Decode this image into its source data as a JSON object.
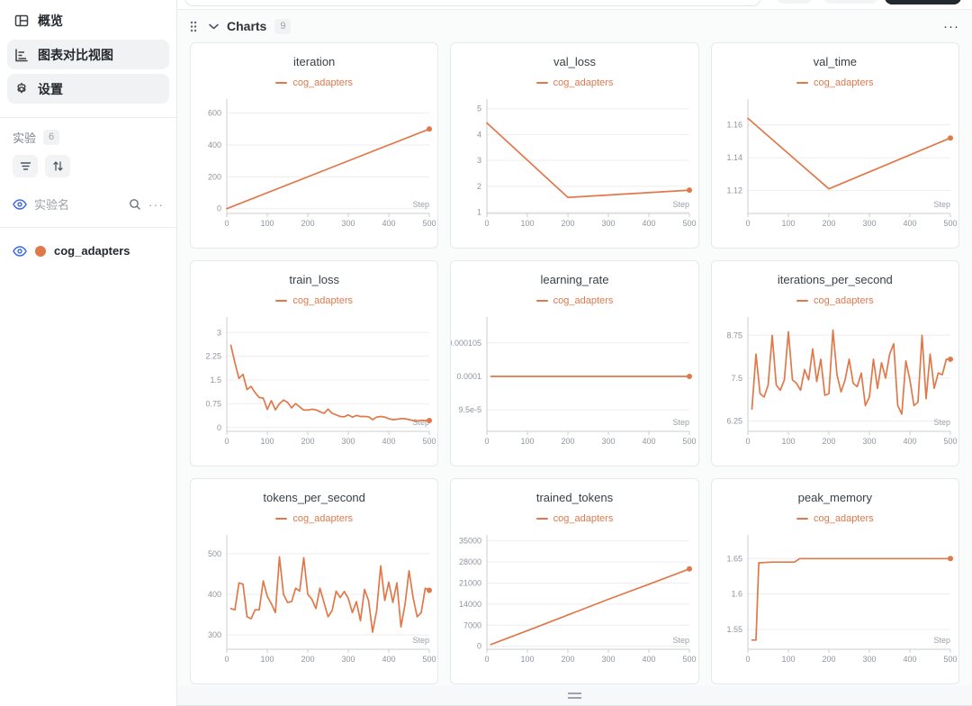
{
  "colors": {
    "accent": "#e0784a",
    "eye_blue": "#3567e8",
    "grid_line": "#eeeeee",
    "axis_line": "#cccccc",
    "tick_text": "#8f959e",
    "step_text": "#9aa0a6"
  },
  "sidebar": {
    "nav": [
      {
        "label": "概览",
        "icon": "overview-grid-icon",
        "active": false
      },
      {
        "label": "图表对比视图",
        "icon": "chart-compare-icon",
        "active": true
      },
      {
        "label": "设置",
        "icon": "settings-gear-icon",
        "active": true
      }
    ],
    "experiments_label": "实验",
    "experiments_count": "6",
    "column_header": "实验名",
    "more_label": "···",
    "experiments": [
      {
        "name": "cog_adapters",
        "color": "#e0784a",
        "visible": true
      }
    ]
  },
  "panel": {
    "title": "Charts",
    "count": "9",
    "more_label": "···"
  },
  "chart_data": [
    {
      "type": "line",
      "title": "iteration",
      "legend": "cog_adapters",
      "xlabel": "Step",
      "x_ticks": [
        0,
        100,
        200,
        300,
        400,
        500
      ],
      "xmax": 500,
      "ymin": -30,
      "ymax": 660,
      "y_ticks": [
        {
          "v": 0,
          "label": "0"
        },
        {
          "v": 200,
          "label": "200"
        },
        {
          "v": 400,
          "label": "400"
        },
        {
          "v": 600,
          "label": "600"
        }
      ],
      "points": [
        [
          0,
          0
        ],
        [
          500,
          500
        ]
      ]
    },
    {
      "type": "line",
      "title": "val_loss",
      "legend": "cog_adapters",
      "xlabel": "Step",
      "x_ticks": [
        0,
        100,
        200,
        300,
        400,
        500
      ],
      "xmax": 500,
      "ymin": 0.95,
      "ymax": 5.2,
      "y_ticks": [
        {
          "v": 1,
          "label": "1"
        },
        {
          "v": 2,
          "label": "2"
        },
        {
          "v": 3,
          "label": "3"
        },
        {
          "v": 4,
          "label": "4"
        },
        {
          "v": 5,
          "label": "5"
        }
      ],
      "points": [
        [
          0,
          4.45
        ],
        [
          200,
          1.57
        ],
        [
          500,
          1.85
        ]
      ]
    },
    {
      "type": "line",
      "title": "val_time",
      "legend": "cog_adapters",
      "xlabel": "Step",
      "x_ticks": [
        0,
        100,
        200,
        300,
        400,
        500
      ],
      "xmax": 500,
      "ymin": 1.106,
      "ymax": 1.173,
      "y_ticks": [
        {
          "v": 1.12,
          "label": "1.12"
        },
        {
          "v": 1.14,
          "label": "1.14"
        },
        {
          "v": 1.16,
          "label": "1.16"
        }
      ],
      "points": [
        [
          0,
          1.164
        ],
        [
          200,
          1.121
        ],
        [
          500,
          1.152
        ]
      ]
    },
    {
      "type": "line",
      "title": "train_loss",
      "legend": "cog_adapters",
      "xlabel": "Step",
      "x_ticks": [
        0,
        100,
        200,
        300,
        400,
        500
      ],
      "xmax": 500,
      "ymin": -0.12,
      "ymax": 3.35,
      "y_ticks": [
        {
          "v": 0,
          "label": "0"
        },
        {
          "v": 0.75,
          "label": "0.75"
        },
        {
          "v": 1.5,
          "label": "1.5"
        },
        {
          "v": 2.25,
          "label": "2.25"
        },
        {
          "v": 3,
          "label": "3"
        }
      ],
      "points": [
        [
          10,
          2.6
        ],
        [
          20,
          2.05
        ],
        [
          30,
          1.55
        ],
        [
          40,
          1.68
        ],
        [
          50,
          1.2
        ],
        [
          60,
          1.3
        ],
        [
          70,
          1.1
        ],
        [
          80,
          0.95
        ],
        [
          90,
          0.93
        ],
        [
          100,
          0.57
        ],
        [
          110,
          0.85
        ],
        [
          120,
          0.56
        ],
        [
          130,
          0.75
        ],
        [
          140,
          0.87
        ],
        [
          150,
          0.8
        ],
        [
          160,
          0.62
        ],
        [
          170,
          0.76
        ],
        [
          180,
          0.65
        ],
        [
          190,
          0.55
        ],
        [
          200,
          0.55
        ],
        [
          210,
          0.58
        ],
        [
          220,
          0.56
        ],
        [
          230,
          0.5
        ],
        [
          240,
          0.45
        ],
        [
          250,
          0.58
        ],
        [
          260,
          0.45
        ],
        [
          270,
          0.4
        ],
        [
          280,
          0.35
        ],
        [
          290,
          0.34
        ],
        [
          300,
          0.4
        ],
        [
          310,
          0.33
        ],
        [
          320,
          0.38
        ],
        [
          330,
          0.35
        ],
        [
          340,
          0.35
        ],
        [
          350,
          0.34
        ],
        [
          360,
          0.25
        ],
        [
          370,
          0.33
        ],
        [
          380,
          0.35
        ],
        [
          390,
          0.33
        ],
        [
          400,
          0.28
        ],
        [
          410,
          0.25
        ],
        [
          420,
          0.26
        ],
        [
          430,
          0.28
        ],
        [
          440,
          0.28
        ],
        [
          450,
          0.25
        ],
        [
          460,
          0.22
        ],
        [
          470,
          0.2
        ],
        [
          480,
          0.23
        ],
        [
          490,
          0.22
        ],
        [
          500,
          0.22
        ]
      ]
    },
    {
      "type": "line",
      "title": "learning_rate",
      "legend": "cog_adapters",
      "xlabel": "Step",
      "x_ticks": [
        0,
        100,
        200,
        300,
        400,
        500
      ],
      "xmax": 500,
      "ymin": 9.18e-05,
      "ymax": 0.0001082,
      "y_ticks": [
        {
          "v": 9.5e-05,
          "label": "9.5e-5"
        },
        {
          "v": 0.0001,
          "label": "0.0001"
        },
        {
          "v": 0.000105,
          "label": "0.000105"
        }
      ],
      "points": [
        [
          10,
          0.0001
        ],
        [
          500,
          0.0001
        ]
      ]
    },
    {
      "type": "line",
      "title": "iterations_per_second",
      "legend": "cog_adapters",
      "xlabel": "Step",
      "x_ticks": [
        0,
        100,
        200,
        300,
        400,
        500
      ],
      "xmax": 500,
      "ymin": 5.95,
      "ymax": 9.15,
      "y_ticks": [
        {
          "v": 6.25,
          "label": "6.25"
        },
        {
          "v": 7.5,
          "label": "7.5"
        },
        {
          "v": 8.75,
          "label": "8.75"
        }
      ],
      "points": [
        [
          10,
          6.6
        ],
        [
          20,
          8.2
        ],
        [
          30,
          7.05
        ],
        [
          40,
          6.95
        ],
        [
          50,
          7.3
        ],
        [
          60,
          8.75
        ],
        [
          70,
          7.3
        ],
        [
          80,
          7.15
        ],
        [
          90,
          7.45
        ],
        [
          100,
          8.85
        ],
        [
          110,
          7.45
        ],
        [
          120,
          7.35
        ],
        [
          130,
          7.15
        ],
        [
          140,
          7.75
        ],
        [
          150,
          7.45
        ],
        [
          160,
          8.35
        ],
        [
          170,
          7.4
        ],
        [
          180,
          8.05
        ],
        [
          190,
          7.0
        ],
        [
          200,
          7.05
        ],
        [
          210,
          8.9
        ],
        [
          220,
          7.6
        ],
        [
          230,
          7.1
        ],
        [
          240,
          7.45
        ],
        [
          250,
          8.05
        ],
        [
          260,
          7.35
        ],
        [
          270,
          7.25
        ],
        [
          280,
          7.65
        ],
        [
          290,
          6.7
        ],
        [
          300,
          6.95
        ],
        [
          310,
          8.05
        ],
        [
          320,
          7.2
        ],
        [
          330,
          7.95
        ],
        [
          340,
          7.5
        ],
        [
          350,
          8.2
        ],
        [
          360,
          8.5
        ],
        [
          370,
          6.7
        ],
        [
          380,
          6.45
        ],
        [
          390,
          8.0
        ],
        [
          400,
          7.45
        ],
        [
          410,
          6.7
        ],
        [
          420,
          6.8
        ],
        [
          430,
          8.75
        ],
        [
          440,
          6.9
        ],
        [
          450,
          8.2
        ],
        [
          460,
          7.2
        ],
        [
          470,
          7.65
        ],
        [
          480,
          7.6
        ],
        [
          490,
          8.05
        ],
        [
          500,
          8.05
        ]
      ]
    },
    {
      "type": "line",
      "title": "tokens_per_second",
      "legend": "cog_adapters",
      "xlabel": "Step",
      "x_ticks": [
        0,
        100,
        200,
        300,
        400,
        500
      ],
      "xmax": 500,
      "ymin": 265,
      "ymax": 535,
      "y_ticks": [
        {
          "v": 300,
          "label": "300"
        },
        {
          "v": 400,
          "label": "400"
        },
        {
          "v": 500,
          "label": "500"
        }
      ],
      "points": [
        [
          10,
          365
        ],
        [
          20,
          362
        ],
        [
          30,
          428
        ],
        [
          40,
          425
        ],
        [
          50,
          345
        ],
        [
          60,
          340
        ],
        [
          70,
          362
        ],
        [
          80,
          362
        ],
        [
          90,
          433
        ],
        [
          100,
          395
        ],
        [
          110,
          377
        ],
        [
          120,
          355
        ],
        [
          130,
          492
        ],
        [
          140,
          400
        ],
        [
          150,
          380
        ],
        [
          160,
          382
        ],
        [
          170,
          415
        ],
        [
          180,
          408
        ],
        [
          190,
          490
        ],
        [
          200,
          400
        ],
        [
          210,
          388
        ],
        [
          220,
          365
        ],
        [
          230,
          415
        ],
        [
          240,
          380
        ],
        [
          250,
          345
        ],
        [
          260,
          360
        ],
        [
          270,
          408
        ],
        [
          280,
          392
        ],
        [
          290,
          407
        ],
        [
          300,
          390
        ],
        [
          310,
          355
        ],
        [
          320,
          382
        ],
        [
          330,
          335
        ],
        [
          340,
          412
        ],
        [
          350,
          385
        ],
        [
          360,
          307
        ],
        [
          370,
          360
        ],
        [
          380,
          470
        ],
        [
          390,
          385
        ],
        [
          400,
          430
        ],
        [
          410,
          380
        ],
        [
          420,
          428
        ],
        [
          430,
          320
        ],
        [
          440,
          375
        ],
        [
          450,
          458
        ],
        [
          460,
          392
        ],
        [
          470,
          345
        ],
        [
          480,
          355
        ],
        [
          490,
          415
        ],
        [
          500,
          410
        ]
      ]
    },
    {
      "type": "line",
      "title": "trained_tokens",
      "legend": "cog_adapters",
      "xlabel": "Step",
      "x_ticks": [
        0,
        100,
        200,
        300,
        400,
        500
      ],
      "xmax": 500,
      "ymin": -1000,
      "ymax": 35500,
      "y_ticks": [
        {
          "v": 0,
          "label": "0"
        },
        {
          "v": 7000,
          "label": "7000"
        },
        {
          "v": 14000,
          "label": "14000"
        },
        {
          "v": 21000,
          "label": "21000"
        },
        {
          "v": 28000,
          "label": "28000"
        },
        {
          "v": 35000,
          "label": "35000"
        }
      ],
      "points": [
        [
          10,
          600
        ],
        [
          100,
          5200
        ],
        [
          200,
          10400
        ],
        [
          300,
          15600
        ],
        [
          400,
          20600
        ],
        [
          500,
          25700
        ]
      ]
    },
    {
      "type": "line",
      "title": "peak_memory",
      "legend": "cog_adapters",
      "xlabel": "Step",
      "x_ticks": [
        0,
        100,
        200,
        300,
        400,
        500
      ],
      "xmax": 500,
      "ymin": 1.522,
      "ymax": 1.677,
      "y_ticks": [
        {
          "v": 1.55,
          "label": "1.55"
        },
        {
          "v": 1.6,
          "label": "1.6"
        },
        {
          "v": 1.65,
          "label": "1.65"
        }
      ],
      "points": [
        [
          10,
          1.535
        ],
        [
          20,
          1.535
        ],
        [
          27,
          1.644
        ],
        [
          60,
          1.645
        ],
        [
          115,
          1.645
        ],
        [
          128,
          1.65
        ],
        [
          300,
          1.65
        ],
        [
          500,
          1.65
        ]
      ]
    }
  ]
}
